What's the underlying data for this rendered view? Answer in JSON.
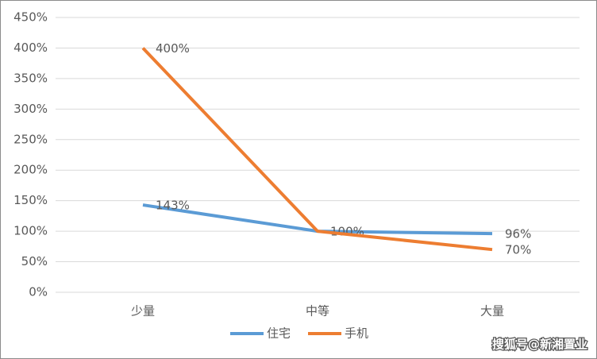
{
  "chart_data": {
    "type": "line",
    "categories": [
      "少量",
      "中等",
      "大量"
    ],
    "series": [
      {
        "name": "住宅",
        "color": "#5b9bd5",
        "values": [
          143,
          100,
          96
        ],
        "value_labels": [
          "143%",
          "100%",
          "96%"
        ]
      },
      {
        "name": "手机",
        "color": "#ed7d31",
        "values": [
          400,
          100,
          70
        ],
        "value_labels": [
          "400%",
          null,
          "70%"
        ]
      }
    ],
    "ylim": [
      0,
      450
    ],
    "yticks": [
      {
        "value": 0,
        "label": "0%"
      },
      {
        "value": 50,
        "label": "50%"
      },
      {
        "value": 100,
        "label": "100%"
      },
      {
        "value": 150,
        "label": "150%"
      },
      {
        "value": 200,
        "label": "200%"
      },
      {
        "value": 250,
        "label": "250%"
      },
      {
        "value": 300,
        "label": "300%"
      },
      {
        "value": 350,
        "label": "350%"
      },
      {
        "value": 400,
        "label": "400%"
      },
      {
        "value": 450,
        "label": "450%"
      }
    ],
    "grid": true,
    "legend": "bottom",
    "watermark": "搜狐号@新湘置业"
  }
}
